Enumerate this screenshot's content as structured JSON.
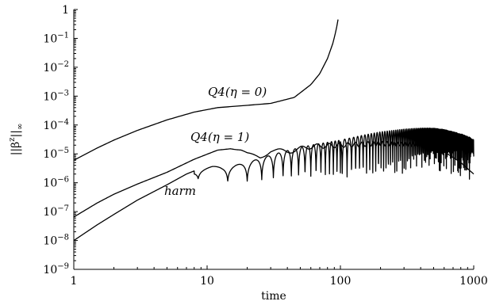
{
  "chart_data": {
    "type": "line",
    "title": "",
    "xlabel": "time",
    "ylabel": "||β^z||∞",
    "x_scale": "log",
    "y_scale": "log",
    "xlim": [
      1,
      1000
    ],
    "ylim": [
      1e-09,
      1
    ],
    "grid": false,
    "legend": "none",
    "x_ticks": [
      {
        "value": 1,
        "label": "1"
      },
      {
        "value": 10,
        "label": "10"
      },
      {
        "value": 100,
        "label": "100"
      },
      {
        "value": 1000,
        "label": "1000"
      }
    ],
    "y_ticks": [
      {
        "value": 1,
        "label": "1"
      },
      {
        "value": 0.1,
        "label": "10^-1"
      },
      {
        "value": 0.01,
        "label": "10^-2"
      },
      {
        "value": 0.001,
        "label": "10^-3"
      },
      {
        "value": 0.0001,
        "label": "10^-4"
      },
      {
        "value": 1e-05,
        "label": "10^-5"
      },
      {
        "value": 1e-06,
        "label": "10^-6"
      },
      {
        "value": 1e-07,
        "label": "10^-7"
      },
      {
        "value": 1e-08,
        "label": "10^-8"
      },
      {
        "value": 1e-09,
        "label": "10^-9"
      }
    ],
    "series": [
      {
        "name": "Q4(η = 0)",
        "x": [
          1,
          1.5,
          2,
          3,
          5,
          8,
          12,
          20,
          30,
          45,
          60,
          70,
          80,
          88,
          93,
          96
        ],
        "y": [
          6e-06,
          1.6e-05,
          3e-05,
          6.5e-05,
          0.00015,
          0.00028,
          0.0004,
          0.00048,
          0.00056,
          0.0009,
          0.0025,
          0.006,
          0.02,
          0.07,
          0.2,
          0.45
        ]
      },
      {
        "name": "Q4(η = 1)",
        "x": [
          1,
          1.5,
          2,
          3,
          5,
          8,
          12,
          15,
          18,
          20,
          25,
          30,
          40,
          60,
          100,
          200,
          400,
          600,
          800,
          1000
        ],
        "y": [
          6.5e-08,
          2e-07,
          4e-07,
          9e-07,
          2.3e-06,
          6.5e-06,
          1.35e-05,
          1.5e-05,
          1.3e-05,
          1e-05,
          8e-06,
          1.3e-05,
          1.2e-05,
          1.8e-05,
          2e-05,
          2.3e-05,
          2.1e-05,
          1.2e-05,
          5e-06,
          2e-06
        ]
      },
      {
        "name": "harm",
        "x": [
          1,
          1.5,
          2,
          3,
          5,
          7,
          9,
          11,
          13,
          16,
          20,
          25,
          30,
          40,
          60,
          100,
          150,
          200,
          300,
          400,
          500,
          600,
          800,
          1000
        ],
        "y": [
          1e-08,
          3.5e-08,
          8e-08,
          2.5e-07,
          8.5e-07,
          2e-06,
          3.2e-06,
          3.7e-06,
          3.5e-06,
          4e-06,
          5e-06,
          7e-06,
          9e-06,
          1.3e-05,
          2e-05,
          3e-05,
          4.5e-05,
          5.8e-05,
          7.2e-05,
          7.8e-05,
          7.8e-05,
          7e-05,
          5e-05,
          3.3e-05
        ]
      }
    ],
    "annotations": [
      {
        "text": "Q4(η = 0)",
        "series": 0
      },
      {
        "text": "Q4(η = 1)",
        "series": 1
      },
      {
        "text": "harm",
        "series": 2
      }
    ]
  }
}
